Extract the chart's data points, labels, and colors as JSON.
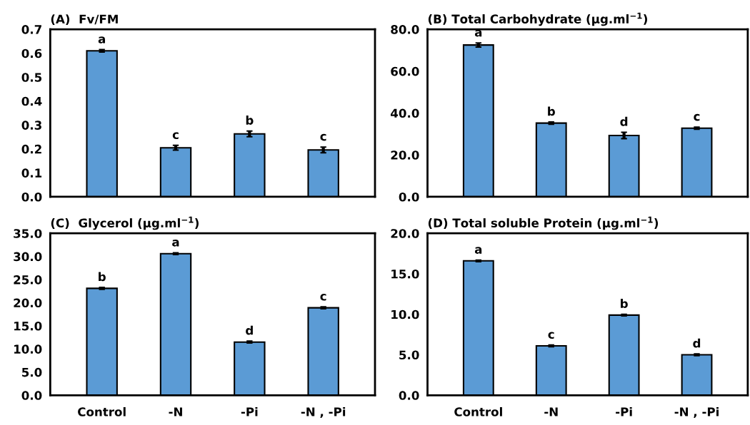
{
  "chart_data": [
    {
      "type": "bar",
      "title": "(A)  Fv/FM",
      "categories": [
        "Control",
        "-N",
        "-Pi",
        "-N , -Pi"
      ],
      "values": [
        0.61,
        0.205,
        0.263,
        0.196
      ],
      "errors": [
        0.005,
        0.01,
        0.012,
        0.012
      ],
      "color": "#5b9bd5",
      "ylim": [
        0,
        0.7
      ],
      "yticks": [
        {
          "value": 0,
          "label": "0.0"
        },
        0.1,
        0.2,
        0.3,
        0.4,
        0.5,
        0.6,
        0.7
      ],
      "tick_labels": "y",
      "grid": false,
      "legend": false,
      "annotations": [
        {
          "text": "a",
          "x": "Control",
          "y": 0.615
        },
        {
          "text": "c",
          "x": "-N",
          "y": 0.215
        },
        {
          "text": "b",
          "x": "-Pi",
          "y": 0.275
        },
        {
          "text": "c",
          "x": "-N , -Pi",
          "y": 0.208
        }
      ]
    },
    {
      "type": "bar",
      "title": "(B) Total Carbohydrate (µg.ml$^{−1}$)",
      "categories": [
        "Control",
        "-N",
        "-Pi",
        "-N , -Pi"
      ],
      "values": [
        72.5,
        35.2,
        29.3,
        32.8
      ],
      "errors": [
        1.0,
        0.5,
        1.5,
        0.5
      ],
      "color": "#5b9bd5",
      "ylim": [
        0,
        80
      ],
      "yticks": [
        {
          "value": 0,
          "label": "0.0"
        },
        {
          "value": 20,
          "label": "20.0"
        },
        {
          "value": 40,
          "label": "40.0"
        },
        {
          "value": 60,
          "label": "60.0"
        },
        {
          "value": 80,
          "label": "80.0"
        }
      ],
      "tick_labels": "y",
      "grid": false,
      "legend": false,
      "annotations": [
        {
          "text": "a",
          "x": "Control",
          "y": 73.5
        },
        {
          "text": "b",
          "x": "-N",
          "y": 35.7
        },
        {
          "text": "d",
          "x": "-Pi",
          "y": 30.8
        },
        {
          "text": "c",
          "x": "-N , -Pi",
          "y": 33.3
        }
      ]
    },
    {
      "type": "bar",
      "title": "(C)  Glycerol (µg.ml$^{−1}$)",
      "categories": [
        "Control",
        "-N",
        "-Pi",
        "-N , -Pi"
      ],
      "values": [
        23.1,
        30.6,
        11.5,
        18.9
      ],
      "errors": [
        0.2,
        0.2,
        0.2,
        0.2
      ],
      "color": "#5b9bd5",
      "ylim": [
        0,
        35
      ],
      "yticks": [
        {
          "value": 0,
          "label": "0.0"
        },
        {
          "value": 5,
          "label": "5.0"
        },
        {
          "value": 10,
          "label": "10.0"
        },
        {
          "value": 15,
          "label": "15.0"
        },
        {
          "value": 20,
          "label": "20.0"
        },
        {
          "value": 25,
          "label": "25.0"
        },
        {
          "value": 30,
          "label": "30.0"
        },
        {
          "value": 35,
          "label": "35.0"
        }
      ],
      "grid": false,
      "legend": false,
      "annotations": [
        {
          "text": "b",
          "x": "Control",
          "y": 23.3
        },
        {
          "text": "a",
          "x": "-N",
          "y": 30.8
        },
        {
          "text": "d",
          "x": "-Pi",
          "y": 11.7
        },
        {
          "text": "c",
          "x": "-N , -Pi",
          "y": 19.1
        }
      ]
    },
    {
      "type": "bar",
      "title": "(D) Total soluble Protein (µg.ml$^{−1}$)",
      "categories": [
        "Control",
        "-N",
        "-Pi",
        "-N , -Pi"
      ],
      "values": [
        16.6,
        6.1,
        9.9,
        5.0
      ],
      "errors": [
        0.1,
        0.1,
        0.1,
        0.1
      ],
      "color": "#5b9bd5",
      "ylim": [
        0,
        20
      ],
      "yticks": [
        {
          "value": 0,
          "label": "0.0"
        },
        {
          "value": 5,
          "label": "5.0"
        },
        {
          "value": 10,
          "label": "10.0"
        },
        {
          "value": 15,
          "label": "15.0"
        },
        {
          "value": 20,
          "label": "20.0"
        }
      ],
      "grid": false,
      "legend": false,
      "annotations": [
        {
          "text": "a",
          "x": "Control",
          "y": 16.7
        },
        {
          "text": "c",
          "x": "-N",
          "y": 6.2
        },
        {
          "text": "b",
          "x": "-Pi",
          "y": 10.0
        },
        {
          "text": "d",
          "x": "-N , -Pi",
          "y": 5.1
        }
      ]
    }
  ]
}
